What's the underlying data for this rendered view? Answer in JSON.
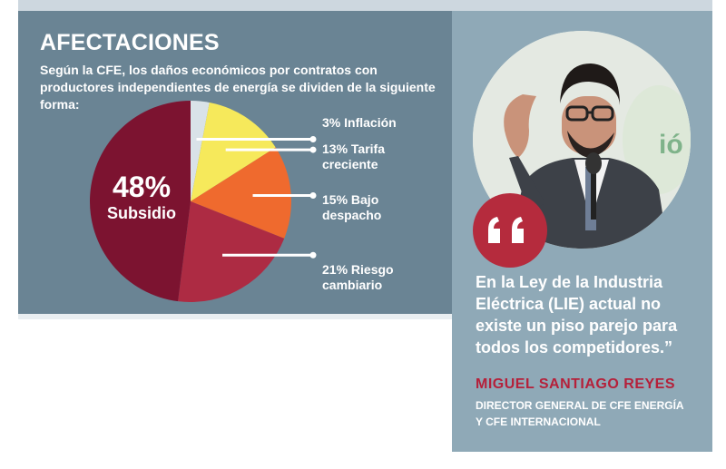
{
  "header": {
    "title": "AFECTACIONES",
    "intro": "Según la CFE, los daños económicos por contratos con productores independientes de energía se dividen de la siguiente forma:"
  },
  "center": {
    "percent": "48%",
    "name": "Subsidio"
  },
  "slice_labels": [
    {
      "line1": "3% Inflación",
      "line2": ""
    },
    {
      "line1": "13% Tarifa",
      "line2": "creciente"
    },
    {
      "line1": "15% Bajo",
      "line2": "despacho"
    },
    {
      "line1": "21% Riesgo",
      "line2": "cambiario"
    }
  ],
  "chart_data": {
    "type": "pie",
    "title": "AFECTACIONES",
    "categories": [
      "Inflación",
      "Tarifa creciente",
      "Bajo despacho",
      "Riesgo cambiario",
      "Subsidio"
    ],
    "values": [
      3,
      13,
      15,
      21,
      48
    ],
    "unit": "%",
    "colors": [
      "#d9e2e8",
      "#f6e95b",
      "#ef6a2e",
      "#ad2b43",
      "#7c1330"
    ]
  },
  "quote": {
    "text": "En la Ley de la Industria Eléctrica (LIE) actual no existe un piso parejo para todos los competidores.”",
    "author": "MIGUEL SANTIAGO REYES",
    "role_line1": "DIRECTOR GENERAL DE CFE ENERGÍA",
    "role_line2": "Y CFE INTERNACIONAL"
  },
  "icons": {
    "quote": "quote-icon",
    "photo": "person-photo"
  },
  "colors": {
    "left_panel": "#6a8494",
    "right_panel": "#8fa9b7",
    "accent": "#b52b3d",
    "author": "#b5203a"
  }
}
